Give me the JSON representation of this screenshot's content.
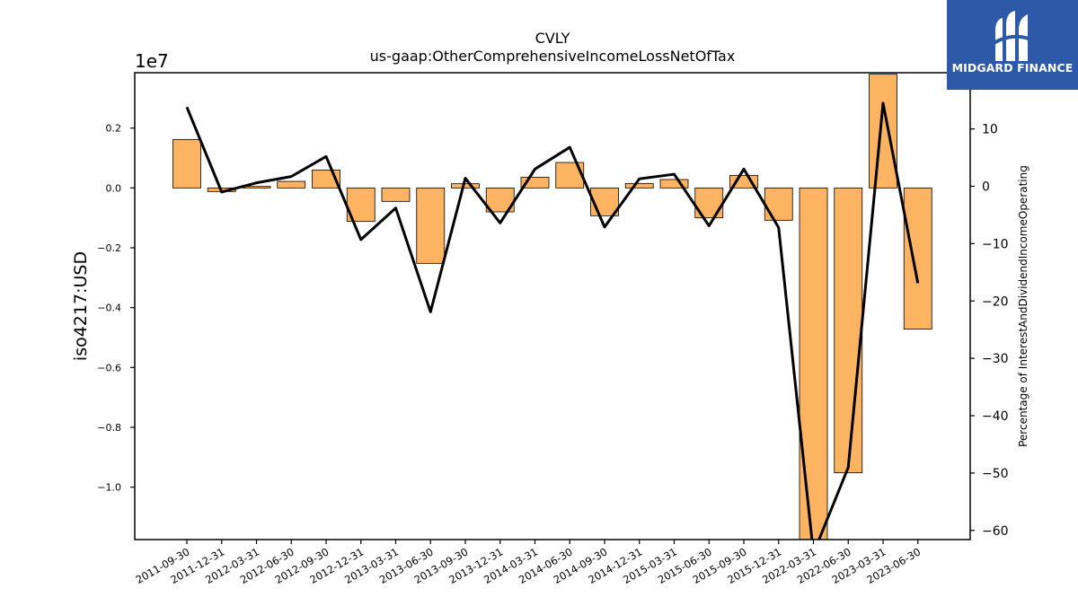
{
  "chart_data": {
    "type": "bar+line",
    "title": "CVLY",
    "subtitle": "us-gaap:OtherComprehensiveIncomeLossNetOfTax",
    "ylabel": "iso4217:USD",
    "y2label": "Percentage of InterestAndDividendIncomeOperating",
    "exponent_label": "1e7",
    "categories": [
      "2011-09-30",
      "2011-12-31",
      "2012-03-31",
      "2012-06-30",
      "2012-09-30",
      "2012-12-31",
      "2013-03-31",
      "2013-06-30",
      "2013-09-30",
      "2013-12-31",
      "2014-03-31",
      "2014-06-30",
      "2014-09-30",
      "2014-12-31",
      "2015-03-31",
      "2015-06-30",
      "2015-09-30",
      "2015-12-31",
      "2022-03-31",
      "2022-06-30",
      "2023-03-31",
      "2023-06-30"
    ],
    "bar_values": [
      0.162,
      -0.012,
      0.005,
      0.022,
      0.06,
      -0.112,
      -0.045,
      -0.252,
      0.014,
      -0.08,
      0.036,
      0.085,
      -0.093,
      0.015,
      0.028,
      -0.1,
      0.042,
      -0.108,
      -1.3,
      -0.952,
      0.38,
      -0.472
    ],
    "line_values": [
      13.8,
      -1.0,
      0.6,
      1.7,
      5.2,
      -9.3,
      -3.8,
      -21.9,
      1.4,
      -6.4,
      3.0,
      6.8,
      -7.1,
      1.3,
      2.1,
      -6.9,
      3.0,
      -7.2,
      -64.0,
      -49.0,
      14.5,
      -16.9
    ],
    "ylim": [
      -1.175,
      0.385
    ],
    "y2lim": [
      -61.6,
      19.8
    ],
    "yticks": [
      0.2,
      0.0,
      -0.2,
      -0.4,
      -0.6,
      -0.8,
      -1.0
    ],
    "ytick_labels": [
      "0.2",
      "0.0",
      "−0.2",
      "−0.4",
      "−0.6",
      "−0.8",
      "−1.0"
    ],
    "y2ticks": [
      10,
      0,
      -10,
      -20,
      -30,
      -40,
      -50,
      -60
    ],
    "y2tick_labels": [
      "10",
      "0",
      "−10",
      "−20",
      "−30",
      "−40",
      "−50",
      "−60"
    ],
    "bar_color": "#fdb462",
    "line_color": "#000000",
    "grid": false
  },
  "logo": {
    "text": "MIDGARD FINANCE",
    "background": "#2d59a8"
  }
}
